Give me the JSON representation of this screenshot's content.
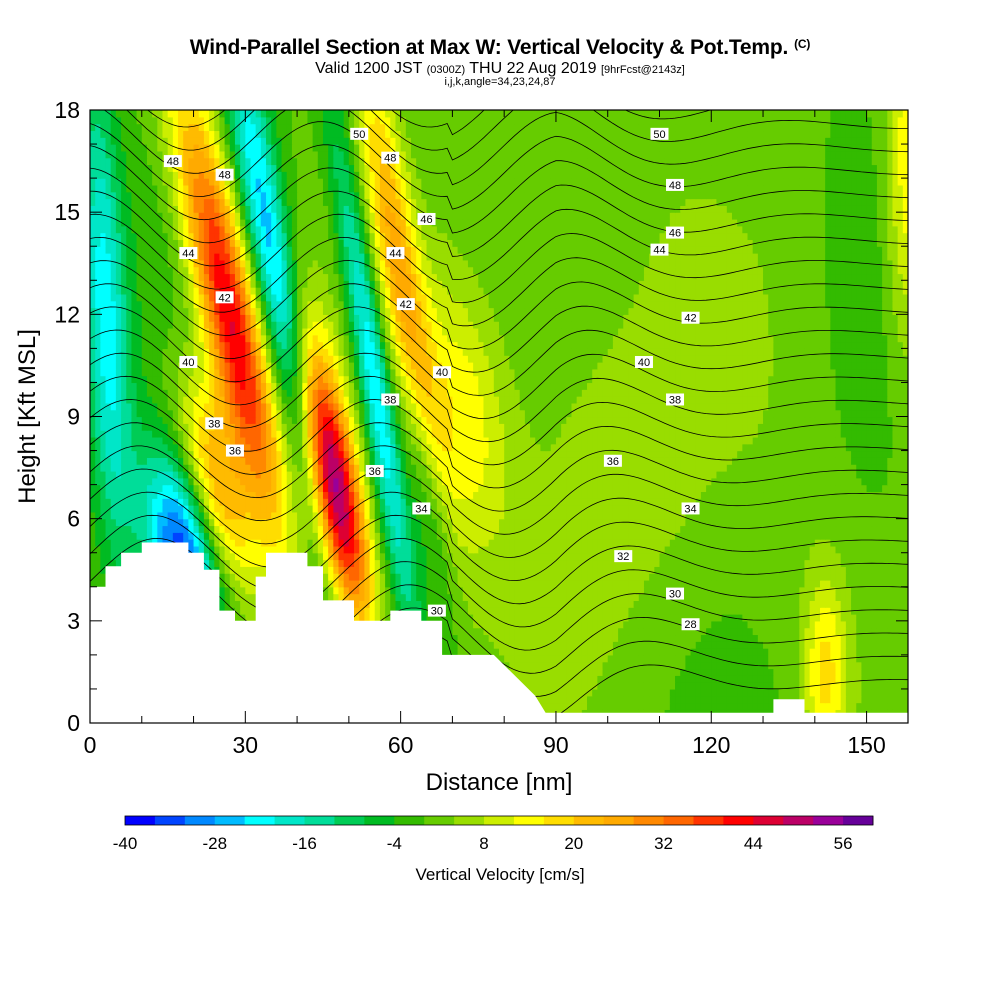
{
  "header": {
    "title": "Wind-Parallel Section at Max W: Vertical Velocity & Pot.Temp.",
    "copyright": "(C)",
    "subtitle_main": "Valid 1200 JST",
    "subtitle_utc": "(0300Z)",
    "subtitle_date": "THU 22 Aug 2019",
    "subtitle_fcst": "[9hrFcst@2143z]",
    "grid_info": "i,j,k,angle=34,23,24,87"
  },
  "chart_data": {
    "type": "heatmap",
    "xlabel": "Distance [nm]",
    "ylabel": "Height [Kft MSL]",
    "xlim": [
      0,
      158
    ],
    "ylim": [
      0,
      18
    ],
    "xticks": [
      "0",
      "30",
      "60",
      "90",
      "120",
      "150"
    ],
    "yticks": [
      "0",
      "3",
      "6",
      "9",
      "12",
      "15",
      "18"
    ],
    "colorbar": {
      "label": "Vertical Velocity [cm/s]",
      "min": -40,
      "max": 60,
      "step": 4,
      "tick_labels": [
        "-40",
        "-28",
        "-16",
        "-4",
        "8",
        "20",
        "32",
        "44",
        "56"
      ],
      "tick_values": [
        -40,
        -28,
        -16,
        -4,
        8,
        20,
        32,
        44,
        56
      ],
      "colors": [
        "#0000ff",
        "#0044ff",
        "#0088ff",
        "#00bbff",
        "#00ffff",
        "#00e6c8",
        "#00dd99",
        "#00cc55",
        "#00bb22",
        "#33bb00",
        "#66cc00",
        "#99dd00",
        "#ccee00",
        "#ffff00",
        "#ffdd00",
        "#ffbb00",
        "#ffaa00",
        "#ff8800",
        "#ff6600",
        "#ff3300",
        "#ff0000",
        "#dd0033",
        "#bb0066",
        "#990099",
        "#660099"
      ]
    },
    "terrain": [
      [
        0,
        4
      ],
      [
        3,
        4
      ],
      [
        3,
        4.6
      ],
      [
        6,
        4.6
      ],
      [
        6,
        5
      ],
      [
        10,
        5
      ],
      [
        10,
        5.3
      ],
      [
        19,
        5.3
      ],
      [
        19,
        5
      ],
      [
        22,
        5
      ],
      [
        22,
        4.5
      ],
      [
        25,
        4.5
      ],
      [
        25,
        3.3
      ],
      [
        28,
        3.3
      ],
      [
        28,
        3
      ],
      [
        32,
        3
      ],
      [
        32,
        4.3
      ],
      [
        34,
        4.3
      ],
      [
        34,
        5
      ],
      [
        42,
        5
      ],
      [
        42,
        4.6
      ],
      [
        45,
        4.6
      ],
      [
        45,
        3.6
      ],
      [
        51,
        3.6
      ],
      [
        51,
        3
      ],
      [
        58,
        3
      ],
      [
        58,
        3.3
      ],
      [
        64,
        3.3
      ],
      [
        64,
        3
      ],
      [
        68,
        3
      ],
      [
        68,
        2
      ],
      [
        78,
        2
      ],
      [
        82,
        1.4
      ],
      [
        86,
        0.8
      ],
      [
        88,
        0.3
      ],
      [
        132,
        0.3
      ],
      [
        132,
        0.7
      ],
      [
        138,
        0.7
      ],
      [
        138,
        0.3
      ],
      [
        158,
        0.3
      ]
    ],
    "w_field": {
      "bg": 0,
      "cells": [
        {
          "x": 27,
          "y": 12,
          "sx": 4,
          "sy": 4.5,
          "tilt": -4,
          "w": 46
        },
        {
          "x": 24,
          "y": 7,
          "sx": 4,
          "sy": 2.2,
          "tilt": -4,
          "w": 26
        },
        {
          "x": 47,
          "y": 7,
          "sx": 3.5,
          "sy": 3,
          "tilt": -3.5,
          "w": 58
        },
        {
          "x": 60,
          "y": 13,
          "sx": 3,
          "sy": 5,
          "tilt": -3,
          "w": 24
        },
        {
          "x": 72,
          "y": 9,
          "sx": 6,
          "sy": 3,
          "tilt": -2,
          "w": 14
        },
        {
          "x": 18,
          "y": 5,
          "sx": 5,
          "sy": 2,
          "tilt": -3,
          "w": -36
        },
        {
          "x": 36,
          "y": 13,
          "sx": 3,
          "sy": 6,
          "tilt": -3.5,
          "w": -28
        },
        {
          "x": 55,
          "y": 10,
          "sx": 2.2,
          "sy": 5,
          "tilt": -3,
          "w": -26
        },
        {
          "x": 3,
          "y": 12,
          "sx": 3,
          "sy": 5,
          "tilt": -1,
          "w": -22
        },
        {
          "x": 65,
          "y": 7,
          "sx": 2.5,
          "sy": 3,
          "tilt": -3,
          "w": -14
        },
        {
          "x": 100,
          "y": 10,
          "sx": 15,
          "sy": 6,
          "tilt": -1,
          "w": 8
        },
        {
          "x": 100,
          "y": 14,
          "sx": 9,
          "sy": 4,
          "tilt": 0,
          "w": -4
        },
        {
          "x": 142,
          "y": 1.5,
          "sx": 3,
          "sy": 2,
          "tilt": 0,
          "w": 16
        },
        {
          "x": 158,
          "y": 16,
          "sx": 3,
          "sy": 4,
          "tilt": 0,
          "w": 16
        },
        {
          "x": 135,
          "y": 8,
          "sx": 8,
          "sy": 6,
          "tilt": 0,
          "w": 2
        }
      ]
    },
    "isentropes": {
      "levels": [
        26,
        27,
        28,
        29,
        30,
        31,
        32,
        33,
        34,
        35,
        36,
        37,
        38,
        39,
        40,
        41,
        42,
        43,
        44,
        45,
        46,
        47,
        48,
        49,
        50,
        51,
        52
      ],
      "labels": [
        {
          "text": "50",
          "x": 52,
          "y": 17.3
        },
        {
          "text": "48",
          "x": 16,
          "y": 16.5
        },
        {
          "text": "48",
          "x": 26,
          "y": 16.1
        },
        {
          "text": "48",
          "x": 58,
          "y": 16.6
        },
        {
          "text": "46",
          "x": 65,
          "y": 14.8
        },
        {
          "text": "44",
          "x": 19,
          "y": 13.8
        },
        {
          "text": "44",
          "x": 59,
          "y": 13.8
        },
        {
          "text": "42",
          "x": 26,
          "y": 12.5
        },
        {
          "text": "42",
          "x": 61,
          "y": 12.3
        },
        {
          "text": "40",
          "x": 19,
          "y": 10.6
        },
        {
          "text": "40",
          "x": 68,
          "y": 10.3
        },
        {
          "text": "38",
          "x": 24,
          "y": 8.8
        },
        {
          "text": "38",
          "x": 58,
          "y": 9.5
        },
        {
          "text": "36",
          "x": 28,
          "y": 8
        },
        {
          "text": "36",
          "x": 55,
          "y": 7.4
        },
        {
          "text": "34",
          "x": 64,
          "y": 6.3
        },
        {
          "text": "30",
          "x": 67,
          "y": 3.3
        },
        {
          "text": "50",
          "x": 110,
          "y": 17.3
        },
        {
          "text": "48",
          "x": 113,
          "y": 15.8
        },
        {
          "text": "46",
          "x": 113,
          "y": 14.4
        },
        {
          "text": "44",
          "x": 110,
          "y": 13.9
        },
        {
          "text": "42",
          "x": 116,
          "y": 11.9
        },
        {
          "text": "40",
          "x": 107,
          "y": 10.6
        },
        {
          "text": "38",
          "x": 113,
          "y": 9.5
        },
        {
          "text": "36",
          "x": 101,
          "y": 7.7
        },
        {
          "text": "34",
          "x": 116,
          "y": 6.3
        },
        {
          "text": "32",
          "x": 103,
          "y": 4.9
        },
        {
          "text": "30",
          "x": 113,
          "y": 3.8
        },
        {
          "text": "28",
          "x": 116,
          "y": 2.9
        }
      ]
    }
  }
}
